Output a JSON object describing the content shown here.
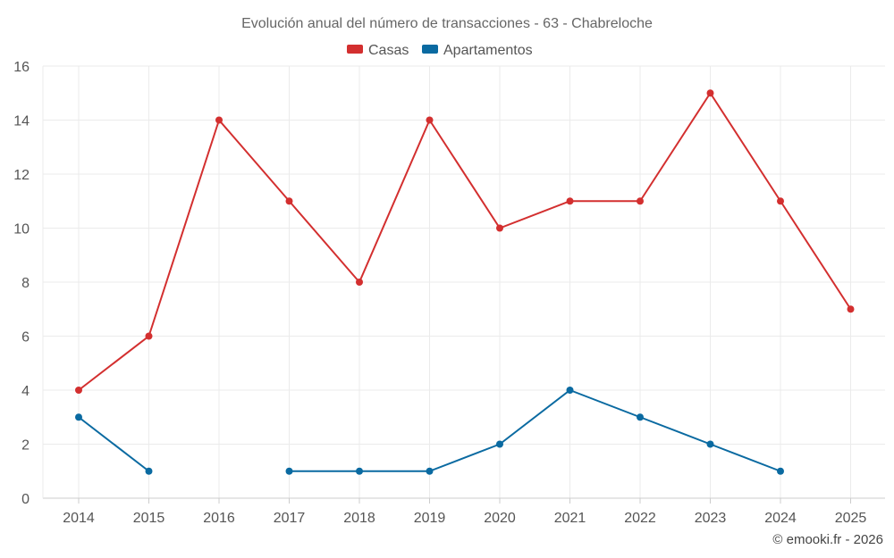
{
  "chart_data": {
    "type": "line",
    "title": "Evolución anual del número de transacciones - 63 - Chabreloche",
    "categories": [
      "2014",
      "2015",
      "2016",
      "2017",
      "2018",
      "2019",
      "2020",
      "2021",
      "2022",
      "2023",
      "2024",
      "2025"
    ],
    "series": [
      {
        "name": "Casas",
        "color": "#d32f2f",
        "values": [
          4,
          6,
          14,
          11,
          8,
          14,
          10,
          11,
          11,
          15,
          11,
          7
        ]
      },
      {
        "name": "Apartamentos",
        "color": "#0a6aa1",
        "values": [
          3,
          1,
          null,
          1,
          1,
          1,
          2,
          4,
          3,
          2,
          1,
          null
        ]
      }
    ],
    "ylim": [
      0,
      16
    ],
    "yticks": [
      0,
      2,
      4,
      6,
      8,
      10,
      12,
      14,
      16
    ],
    "grid": true,
    "legend_position": "top-center"
  },
  "credit": "© emooki.fr - 2026"
}
